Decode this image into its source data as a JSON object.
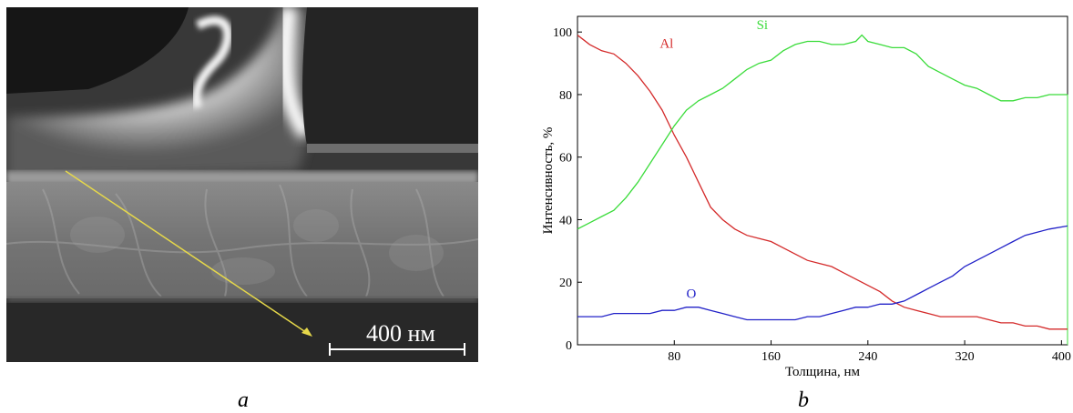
{
  "micrograph": {
    "scale_bar_label": "400 нм"
  },
  "captions": {
    "a": "a",
    "b": "b"
  },
  "chart_data": {
    "type": "line",
    "xlabel": "Толщина, нм",
    "ylabel": "Интенсивность, %",
    "xlim": [
      0,
      405
    ],
    "ylim": [
      0,
      105
    ],
    "xticks": [
      80,
      160,
      240,
      320,
      400
    ],
    "yticks": [
      0,
      20,
      40,
      60,
      80,
      100
    ],
    "grid": false,
    "series": [
      {
        "name": "Al",
        "color": "#d42a2a",
        "x": [
          0,
          10,
          20,
          30,
          40,
          50,
          60,
          70,
          80,
          90,
          100,
          110,
          120,
          130,
          140,
          150,
          160,
          170,
          180,
          190,
          200,
          210,
          220,
          230,
          240,
          250,
          260,
          270,
          280,
          290,
          300,
          310,
          320,
          330,
          340,
          350,
          360,
          370,
          380,
          390,
          405
        ],
        "y": [
          99,
          96,
          94,
          93,
          90,
          86,
          81,
          75,
          67,
          60,
          52,
          44,
          40,
          37,
          35,
          34,
          33,
          31,
          29,
          27,
          26,
          25,
          23,
          21,
          19,
          17,
          14,
          12,
          11,
          10,
          9,
          9,
          9,
          9,
          8,
          7,
          7,
          6,
          6,
          5,
          5
        ]
      },
      {
        "name": "Si",
        "color": "#3bdc3b",
        "x": [
          0,
          10,
          20,
          30,
          40,
          50,
          60,
          70,
          80,
          90,
          100,
          110,
          120,
          130,
          140,
          150,
          160,
          170,
          180,
          190,
          200,
          210,
          220,
          230,
          235,
          240,
          250,
          260,
          270,
          280,
          290,
          300,
          310,
          320,
          330,
          340,
          350,
          360,
          370,
          380,
          390,
          405
        ],
        "y": [
          37,
          39,
          41,
          43,
          47,
          52,
          58,
          64,
          70,
          75,
          78,
          80,
          82,
          85,
          88,
          90,
          91,
          94,
          96,
          97,
          97,
          96,
          96,
          97,
          99,
          97,
          96,
          95,
          95,
          93,
          89,
          87,
          85,
          83,
          82,
          80,
          78,
          78,
          79,
          79,
          80,
          80
        ]
      },
      {
        "name": "O",
        "color": "#2222c8",
        "x": [
          0,
          10,
          20,
          30,
          40,
          50,
          60,
          70,
          80,
          90,
          100,
          110,
          120,
          130,
          140,
          150,
          160,
          170,
          180,
          190,
          200,
          210,
          220,
          230,
          240,
          250,
          260,
          270,
          280,
          290,
          300,
          310,
          320,
          330,
          340,
          350,
          360,
          370,
          380,
          390,
          405
        ],
        "y": [
          9,
          9,
          9,
          10,
          10,
          10,
          10,
          11,
          11,
          12,
          12,
          11,
          10,
          9,
          8,
          8,
          8,
          8,
          8,
          9,
          9,
          10,
          11,
          12,
          12,
          13,
          13,
          14,
          16,
          18,
          20,
          22,
          25,
          27,
          29,
          31,
          33,
          35,
          36,
          37,
          38
        ]
      }
    ]
  }
}
